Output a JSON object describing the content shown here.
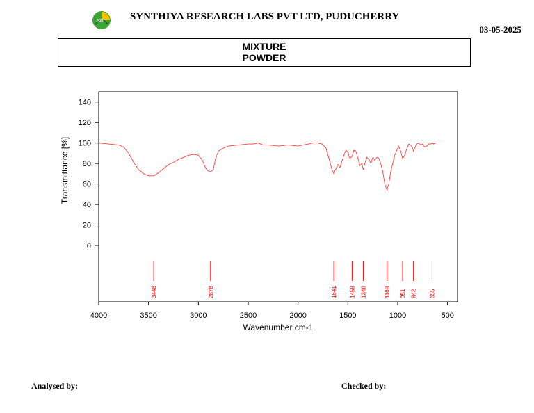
{
  "header": {
    "company": "SYNTHIYA RESEARCH LABS PVT LTD, PUDUCHERRY",
    "date": "03-05-2025",
    "sample_line1": "MIXTURE",
    "sample_line2": "POWDER",
    "logo_text": "SRL"
  },
  "footer": {
    "analysed_by": "Analysed by:",
    "checked_by": "Checked by:"
  },
  "colors": {
    "spectrum": "#ff4040",
    "peak_marker": "#ff0000",
    "logo_green": "#3aa635",
    "logo_yellow": "#f2c200"
  },
  "chart_data": {
    "type": "line",
    "xlabel": "Wavenumber cm-1",
    "ylabel": "Transmittance [%]",
    "xlim": [
      4000,
      400
    ],
    "ylim": [
      -55,
      150
    ],
    "x_ticks": [
      4000,
      3500,
      3000,
      2500,
      2000,
      1500,
      1000,
      500
    ],
    "y_ticks": [
      0,
      20,
      40,
      60,
      80,
      100,
      120,
      140
    ],
    "grid": false,
    "series": [
      {
        "x": [
          4000,
          3900,
          3800,
          3750,
          3700,
          3650,
          3600,
          3550,
          3500,
          3448,
          3400,
          3350,
          3300,
          3250,
          3200,
          3150,
          3100,
          3050,
          3000,
          2960,
          2930,
          2910,
          2878,
          2850,
          2830,
          2800,
          2750,
          2700,
          2600,
          2500,
          2450,
          2400,
          2350,
          2300,
          2200,
          2100,
          2000,
          1950,
          1900,
          1850,
          1800,
          1760,
          1720,
          1690,
          1660,
          1641,
          1620,
          1600,
          1580,
          1560,
          1540,
          1520,
          1500,
          1480,
          1458,
          1440,
          1420,
          1400,
          1380,
          1360,
          1346,
          1330,
          1310,
          1290,
          1270,
          1250,
          1230,
          1210,
          1190,
          1170,
          1150,
          1130,
          1108,
          1090,
          1070,
          1050,
          1030,
          1010,
          990,
          970,
          951,
          930,
          910,
          890,
          870,
          850,
          842,
          830,
          810,
          790,
          770,
          750,
          730,
          710,
          690,
          670,
          655,
          640,
          620,
          600
        ],
        "y": [
          100,
          99,
          98,
          96,
          90,
          81,
          74,
          70,
          68,
          68,
          71,
          75,
          79,
          81,
          84,
          86,
          88,
          89,
          88,
          83,
          76,
          73,
          72,
          74,
          84,
          92,
          95,
          97,
          98,
          99,
          99,
          100,
          98,
          98,
          97,
          98,
          97,
          98,
          99,
          100,
          100,
          99,
          95,
          85,
          74,
          70,
          75,
          79,
          76,
          82,
          88,
          93,
          91,
          85,
          87,
          93,
          92,
          85,
          78,
          80,
          74,
          80,
          86,
          84,
          80,
          86,
          83,
          86,
          85,
          80,
          72,
          60,
          54,
          60,
          72,
          80,
          88,
          93,
          97,
          92,
          85,
          88,
          94,
          99,
          98,
          95,
          92,
          95,
          99,
          100,
          98,
          99,
          96,
          97,
          99,
          99,
          100,
          99,
          100,
          100
        ]
      }
    ],
    "peaks": [
      {
        "label": "3448",
        "x": 3448
      },
      {
        "label": "2878",
        "x": 2878
      },
      {
        "label": "1641",
        "x": 1641
      },
      {
        "label": "1458",
        "x": 1458
      },
      {
        "label": "1346",
        "x": 1346
      },
      {
        "label": "1108",
        "x": 1108
      },
      {
        "label": "951",
        "x": 951
      },
      {
        "label": "842",
        "x": 842
      },
      {
        "label": "655",
        "x": 655
      }
    ]
  }
}
